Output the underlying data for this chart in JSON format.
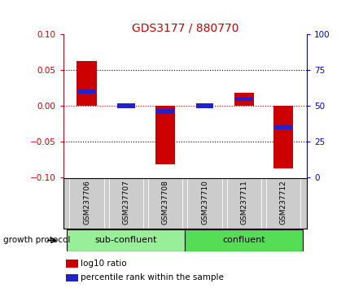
{
  "title": "GDS3177 / 880770",
  "samples": [
    "GSM237706",
    "GSM237707",
    "GSM237708",
    "GSM237710",
    "GSM237711",
    "GSM237712"
  ],
  "log10_ratio": [
    0.063,
    0.0,
    -0.082,
    0.0,
    0.018,
    -0.088
  ],
  "percentile_rank": [
    60.0,
    50.0,
    46.0,
    50.0,
    55.0,
    35.0
  ],
  "bar_color_red": "#cc0000",
  "bar_color_blue": "#2222cc",
  "ylim_left": [
    -0.1,
    0.1
  ],
  "ylim_right": [
    0,
    100
  ],
  "yticks_left": [
    -0.1,
    -0.05,
    0.0,
    0.05,
    0.1
  ],
  "yticks_right": [
    0,
    25,
    50,
    75,
    100
  ],
  "hlines_dotted": [
    -0.05,
    0.05
  ],
  "hline_zero": 0.0,
  "groups": [
    {
      "label": "sub-confluent",
      "indices": [
        0,
        1,
        2
      ],
      "color": "#99ee99"
    },
    {
      "label": "confluent",
      "indices": [
        3,
        4,
        5
      ],
      "color": "#55dd55"
    }
  ],
  "group_label": "growth protocol",
  "legend_red": "log10 ratio",
  "legend_blue": "percentile rank within the sample",
  "bar_width": 0.5,
  "plot_bg": "#ffffff",
  "label_bg": "#cccccc",
  "title_color": "#cc0000",
  "left_tick_color": "#cc0000",
  "right_tick_color": "#0000cc"
}
